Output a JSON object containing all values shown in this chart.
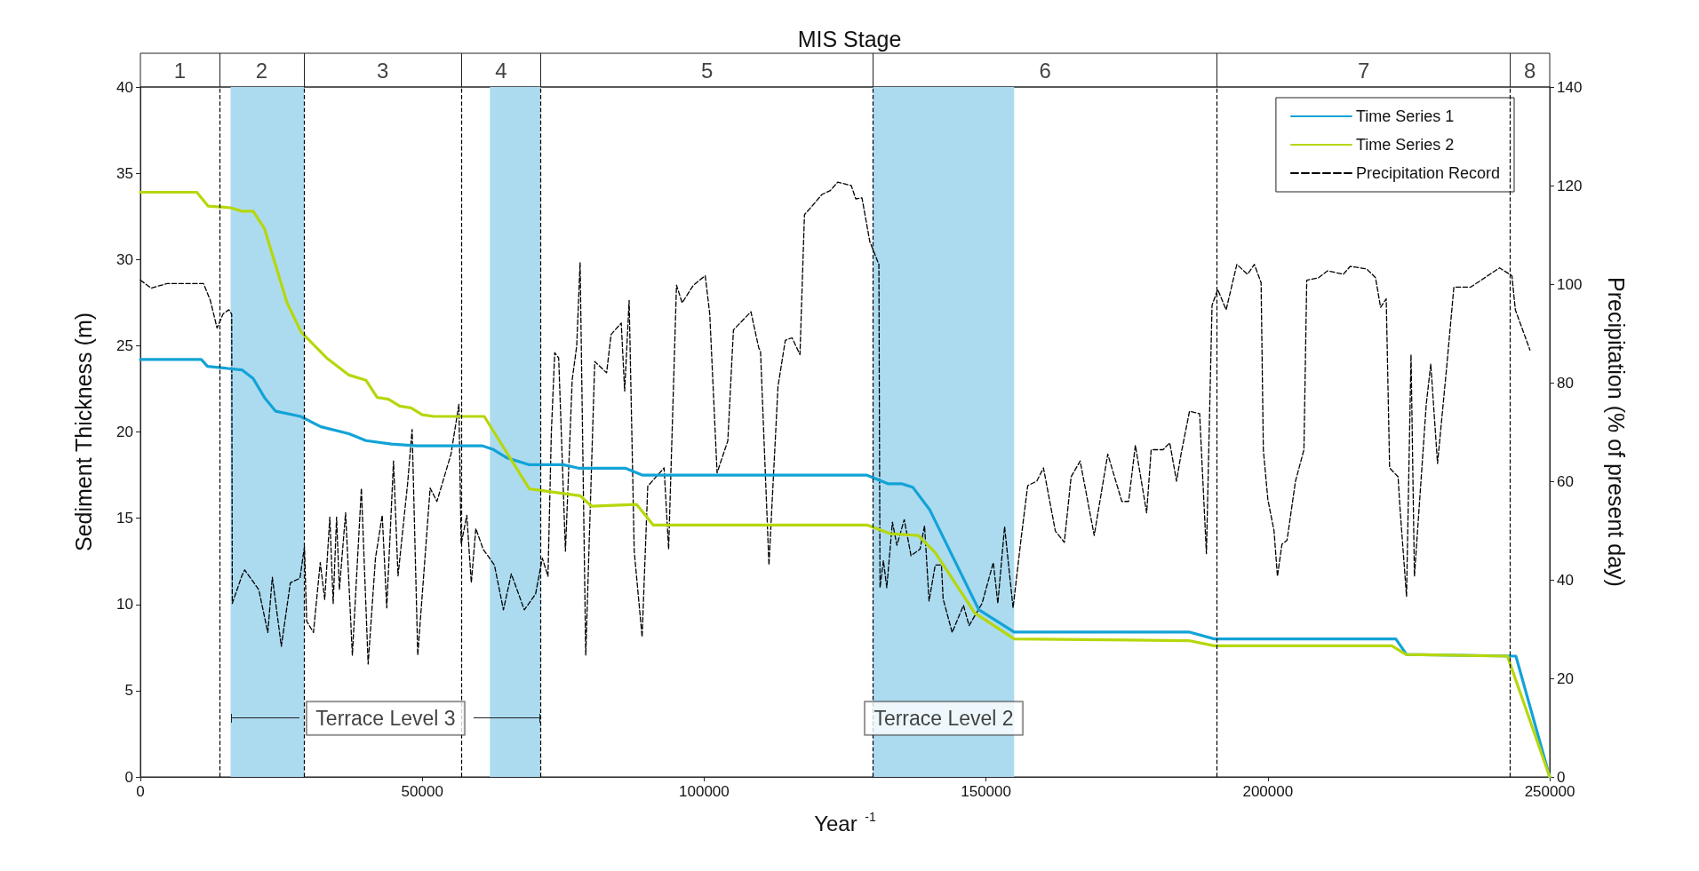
{
  "chart_data": {
    "type": "line",
    "title": "MIS Stage",
    "xlabel": "Year $^{-1}$",
    "ylabel": "Sediment Thickness (m)",
    "y2label": "Precipitation (% of present day)",
    "xlim": [
      0,
      250000
    ],
    "xticks": [
      0,
      50000,
      100000,
      150000,
      200000,
      250000
    ],
    "ylim": [
      0,
      40
    ],
    "yticks": [
      0,
      5,
      10,
      15,
      20,
      25,
      30,
      35,
      40
    ],
    "y2lim": [
      0,
      140
    ],
    "y2ticks": [
      0,
      20,
      40,
      60,
      80,
      100,
      120,
      140
    ],
    "legend": "top right",
    "marker": "none",
    "grid": false,
    "series": [
      {
        "name": "Time Series 1",
        "color": "#12a3d6",
        "line_style": "solid",
        "x": [
          0,
          10800,
          11900,
          18000,
          20000,
          22000,
          24000,
          28400,
          32000,
          37000,
          40000,
          44500,
          49000,
          60600,
          62500,
          65000,
          69000,
          75000,
          77700,
          86000,
          89000,
          128800,
          132600,
          135000,
          137000,
          140000,
          148700,
          155000,
          186000,
          190500,
          222700,
          224600,
          244000,
          250000
        ],
        "values": [
          24.2,
          24.2,
          23.8,
          23.6,
          23.1,
          22,
          21.2,
          20.9,
          20.3,
          19.9,
          19.5,
          19.3,
          19.2,
          19.2,
          19,
          18.5,
          18.1,
          18.1,
          17.9,
          17.9,
          17.5,
          17.5,
          17,
          17,
          16.8,
          15.5,
          9.7,
          8.4,
          8.4,
          8,
          8,
          7.1,
          7,
          0
        ]
      },
      {
        "name": "Time Series 2",
        "color": "#b6d70c",
        "line_style": "solid",
        "x": [
          0,
          10000,
          12000,
          16000,
          18000,
          20000,
          22000,
          26000,
          28500,
          33000,
          37000,
          40000,
          42000,
          44000,
          46000,
          48000,
          50000,
          52000,
          61000,
          69000,
          78000,
          80000,
          88000,
          91000,
          129000,
          133000,
          138000,
          141000,
          148000,
          155000,
          186000,
          190500,
          222000,
          224500,
          242500,
          250000
        ],
        "values": [
          33.9,
          33.9,
          33.1,
          33,
          32.8,
          32.8,
          31.8,
          27.5,
          25.8,
          24.3,
          23.3,
          23,
          22,
          21.9,
          21.5,
          21.4,
          21,
          20.9,
          20.9,
          16.7,
          16.3,
          15.7,
          15.8,
          14.6,
          14.6,
          14.1,
          14,
          13,
          9.5,
          8,
          7.9,
          7.6,
          7.6,
          7.1,
          7,
          0
        ]
      },
      {
        "name": "Precipitation Record",
        "color": "#000000",
        "line_style": "dashed",
        "axis": "y2",
        "x": [
          0,
          1900,
          4700,
          11200,
          12400,
          13600,
          14700,
          15700,
          16200,
          16300,
          18000,
          18500,
          21000,
          22600,
          23400,
          25000,
          26600,
          28300,
          29100,
          29500,
          30700,
          31900,
          32700,
          33600,
          34200,
          34800,
          35300,
          36400,
          37600,
          39200,
          40400,
          41700,
          42900,
          43700,
          44900,
          45700,
          47400,
          48200,
          49200,
          51400,
          52600,
          55100,
          56500,
          56900,
          57900,
          58700,
          59500,
          60800,
          62800,
          64400,
          65800,
          68100,
          70100,
          71300,
          72300,
          72900,
          73500,
          74200,
          75400,
          76600,
          77400,
          78000,
          79000,
          80600,
          82700,
          83500,
          85300,
          85900,
          86700,
          87600,
          89000,
          90000,
          92900,
          93700,
          95100,
          96100,
          98100,
          100200,
          101000,
          102300,
          104200,
          105200,
          108300,
          109700,
          110000,
          111500,
          113100,
          114400,
          115600,
          117000,
          117800,
          119200,
          120900,
          122400,
          123700,
          126100,
          126900,
          128000,
          129400,
          131000,
          131200,
          131800,
          132400,
          133400,
          134200,
          135500,
          136700,
          138300,
          139100,
          139900,
          141000,
          142100,
          142400,
          144000,
          146000,
          147000,
          149300,
          151300,
          152100,
          153300,
          154800,
          156200,
          157400,
          159000,
          160200,
          162300,
          163900,
          165100,
          166700,
          169200,
          171600,
          174100,
          175300,
          176500,
          178500,
          179300,
          181400,
          182600,
          183800,
          184600,
          186100,
          187900,
          189100,
          190100,
          191100,
          192600,
          194500,
          196400,
          197600,
          198800,
          199200,
          200000,
          201100,
          201700,
          202500,
          203400,
          204900,
          206400,
          206900,
          209000,
          210600,
          213400,
          214600,
          217500,
          219100,
          220000,
          221000,
          221600,
          223100,
          223400,
          224600,
          225400,
          226000,
          228100,
          228900,
          230100,
          231700,
          233000,
          236000,
          241100,
          243300,
          243900,
          246500
        ],
        "values": [
          100.8,
          99.2,
          100.1,
          100.1,
          96.7,
          91.1,
          94,
          94.8,
          93.9,
          35.2,
          40.8,
          42,
          38,
          29.3,
          40.5,
          26.5,
          39.4,
          40.3,
          46.7,
          31.6,
          29.3,
          43.5,
          36,
          52.7,
          35.2,
          52.7,
          38,
          53.6,
          24.7,
          58.6,
          22.9,
          44.4,
          53.1,
          34.3,
          64.1,
          40.8,
          59.5,
          70.5,
          24.7,
          58.6,
          55.9,
          65.5,
          75.6,
          47.2,
          53.1,
          39.4,
          50.4,
          46.2,
          43,
          33.9,
          41.2,
          33.9,
          37.1,
          44.4,
          40.7,
          70,
          86.1,
          85,
          45.8,
          80.6,
          87.5,
          104.4,
          24.7,
          84.3,
          82,
          89.8,
          92.1,
          78.3,
          96.7,
          45.8,
          28.4,
          59,
          62.7,
          46.2,
          99.8,
          96.2,
          99.8,
          101.7,
          93.9,
          61.7,
          68.2,
          90.7,
          94.4,
          87,
          86.5,
          43,
          79.2,
          88.6,
          89.1,
          85.7,
          114.1,
          115.9,
          118.2,
          119,
          120.7,
          120,
          117.3,
          117.5,
          108.6,
          104,
          38.4,
          43.9,
          38.4,
          51.7,
          47,
          52.2,
          44.9,
          46.2,
          51,
          35.7,
          43,
          43,
          36.1,
          29.3,
          34.8,
          30.7,
          35.2,
          43.5,
          35.2,
          50.8,
          34.3,
          48.1,
          59.1,
          60,
          62.7,
          49.9,
          47.6,
          60.9,
          64.1,
          49,
          65.5,
          55.9,
          55.9,
          67.3,
          53.6,
          66.4,
          66.4,
          67.8,
          60,
          65.5,
          74.2,
          73.7,
          45.3,
          95.7,
          98.9,
          94.8,
          104,
          102,
          104,
          100.3,
          66.4,
          56.3,
          49.9,
          40.7,
          47.2,
          48,
          60,
          66.4,
          100.8,
          101.3,
          102.7,
          102,
          103.6,
          103.1,
          101.3,
          95.3,
          97,
          62.7,
          60.9,
          55.2,
          36.6,
          85.7,
          40.7,
          75.6,
          83.8,
          63.6,
          82.9,
          99.4,
          99.4,
          103.3,
          101.7,
          94.8,
          86.6
        ]
      }
    ],
    "ref_lines": [
      {
        "axis": "x",
        "value": 14000,
        "color": "#000000",
        "line_style": "dashed"
      },
      {
        "axis": "x",
        "value": 29000,
        "color": "#000000",
        "line_style": "dashed"
      },
      {
        "axis": "x",
        "value": 57000,
        "color": "#000000",
        "line_style": "dashed"
      },
      {
        "axis": "x",
        "value": 71000,
        "color": "#000000",
        "line_style": "dashed"
      },
      {
        "axis": "x",
        "value": 130000,
        "color": "#000000",
        "line_style": "dashed"
      },
      {
        "axis": "x",
        "value": 191000,
        "color": "#000000",
        "line_style": "dashed"
      },
      {
        "axis": "x",
        "value": 243000,
        "color": "#000000",
        "line_style": "dashed"
      }
    ],
    "bands": [
      {
        "axis": "x",
        "from": 16000,
        "to": 29000,
        "color": "#acdbf0"
      },
      {
        "axis": "x",
        "from": 62000,
        "to": 71000,
        "color": "#acdbf0"
      },
      {
        "axis": "x",
        "from": 130000,
        "to": 155000,
        "color": "#acdbf0"
      }
    ],
    "annotations": [
      "1",
      "2",
      "3",
      "4",
      "5",
      "6",
      "7",
      "8",
      "Terrace Level 3",
      "Terrace Level 2"
    ]
  }
}
